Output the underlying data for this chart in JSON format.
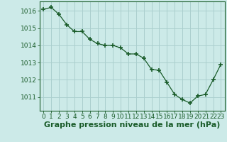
{
  "x": [
    0,
    1,
    2,
    3,
    4,
    5,
    6,
    7,
    8,
    9,
    10,
    11,
    12,
    13,
    14,
    15,
    16,
    17,
    18,
    19,
    20,
    21,
    22,
    23
  ],
  "y": [
    1016.1,
    1016.2,
    1015.8,
    1015.2,
    1014.8,
    1014.8,
    1014.35,
    1014.1,
    1014.0,
    1014.0,
    1013.85,
    1013.5,
    1013.5,
    1013.25,
    1012.6,
    1012.55,
    1011.85,
    1011.15,
    1010.85,
    1010.65,
    1011.05,
    1011.15,
    1012.0,
    1012.9
  ],
  "line_color": "#1a5c2a",
  "marker": "+",
  "marker_size": 5,
  "background_color": "#cceae8",
  "grid_color": "#aacfce",
  "xlabel": "Graphe pression niveau de la mer (hPa)",
  "xlabel_fontsize": 8,
  "ylabel_ticks": [
    1011,
    1012,
    1013,
    1014,
    1015,
    1016
  ],
  "ylim": [
    1010.2,
    1016.55
  ],
  "xlim": [
    -0.5,
    23.5
  ],
  "tick_fontsize": 6.5,
  "axis_color": "#1a5c2a"
}
